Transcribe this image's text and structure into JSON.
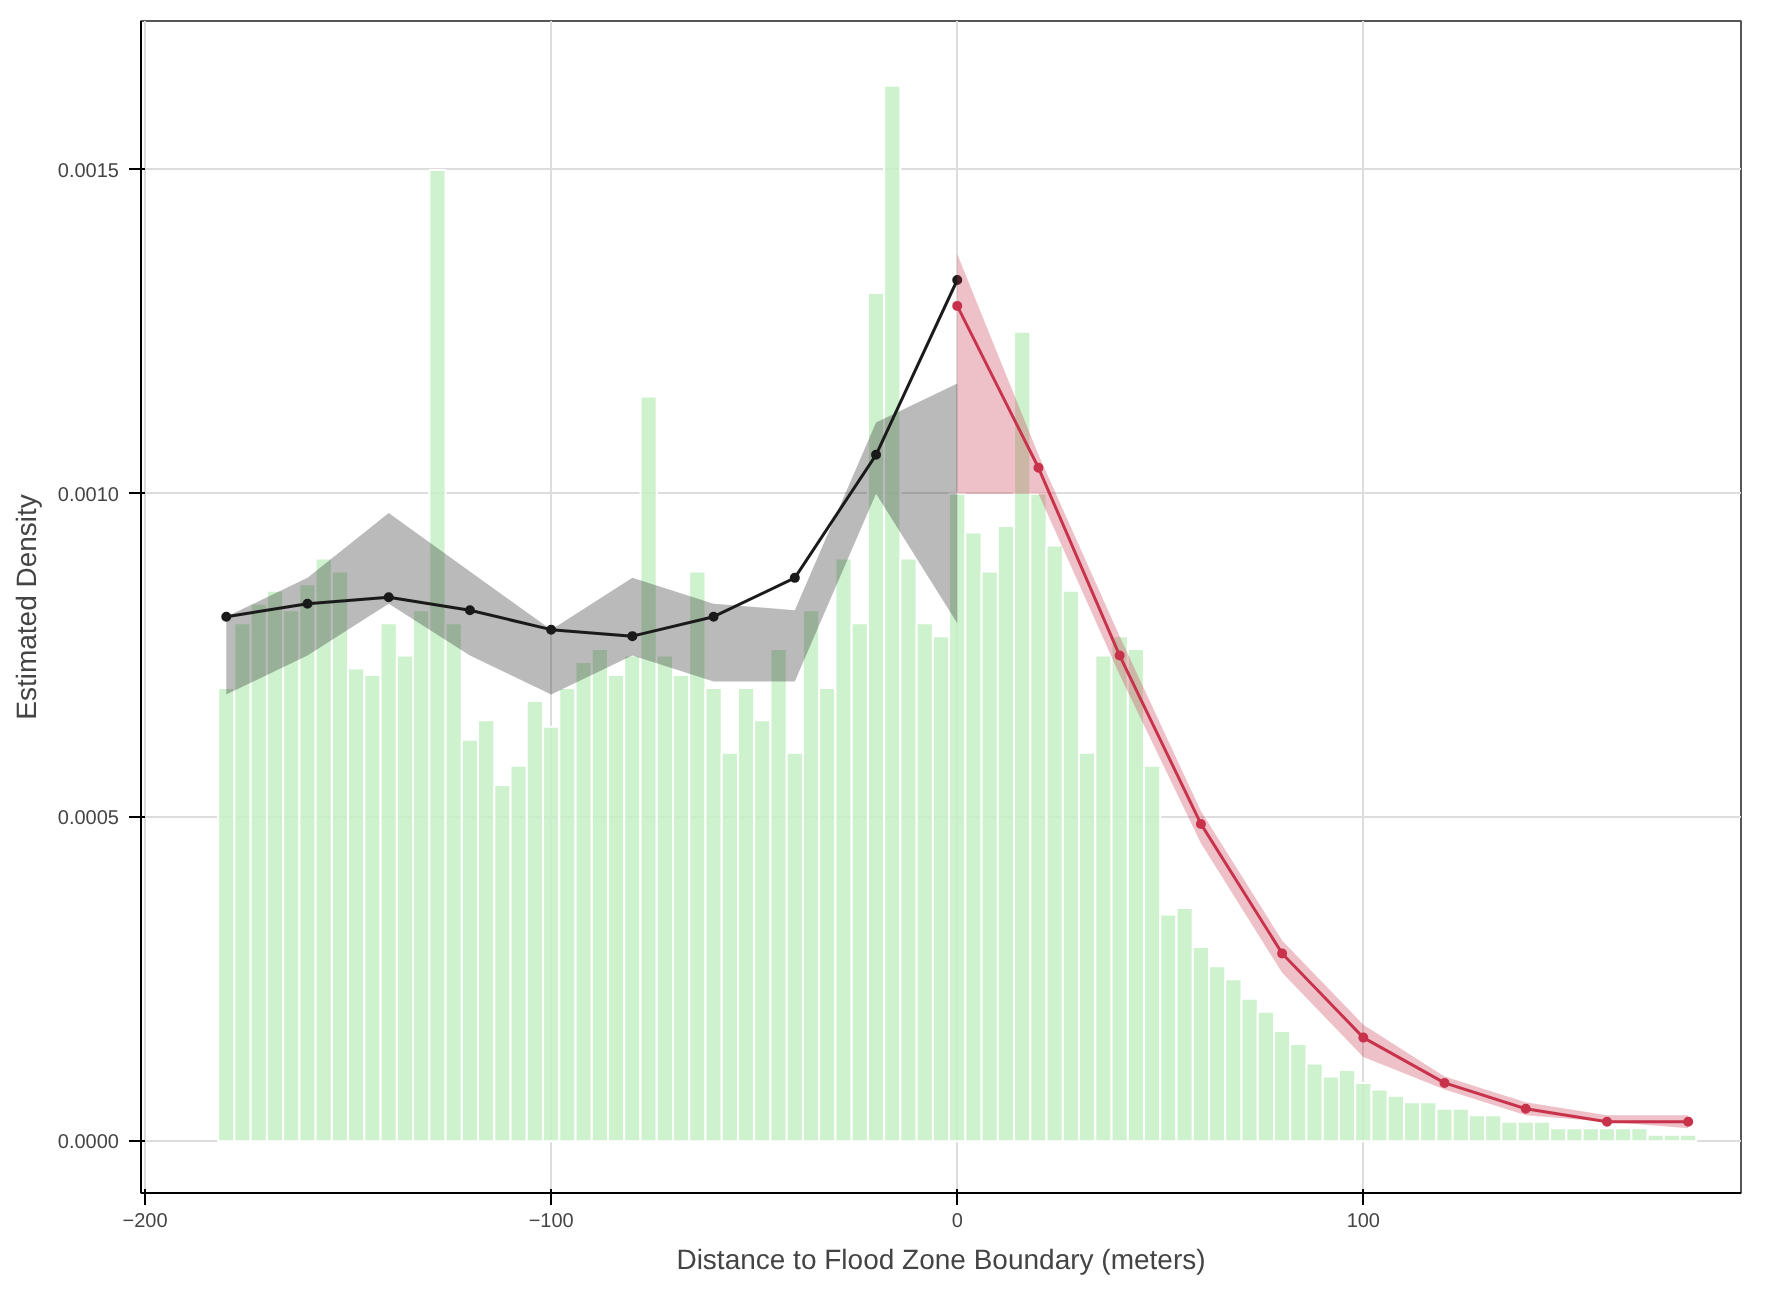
{
  "chart_data": {
    "type": "histogram",
    "xlabel": "Distance to Flood Zone Boundary (meters)",
    "ylabel": "Estimated Density",
    "bins": [
      -182,
      -178,
      -174,
      -170,
      -166,
      -162,
      -158,
      -154,
      -150,
      -146,
      -142,
      -138,
      -134,
      -130,
      -126,
      -122,
      -118,
      -114,
      -110,
      -106,
      -102,
      -98,
      -94,
      -90,
      -86,
      -82,
      -78,
      -74,
      -70,
      -66,
      -62,
      -58,
      -54,
      -50,
      -46,
      -42,
      -38,
      -34,
      -30,
      -26,
      -22,
      -18,
      -14,
      -10,
      -6,
      -2,
      2,
      6,
      10,
      14,
      18,
      22,
      26,
      30,
      34,
      38,
      42,
      46,
      50,
      54,
      58,
      62,
      66,
      70,
      74,
      78,
      82,
      86,
      90,
      94,
      98,
      102,
      106,
      110,
      114,
      118,
      122,
      126,
      130,
      134,
      138,
      142,
      146,
      150,
      154,
      158,
      162,
      166,
      170,
      174,
      178,
      182
    ],
    "values": [
      0.0007,
      0.0008,
      0.00083,
      0.00085,
      0.00082,
      0.00086,
      0.0009,
      0.00088,
      0.00073,
      0.00072,
      0.0008,
      0.00075,
      0.00082,
      0.0015,
      0.0008,
      0.00062,
      0.00065,
      0.00055,
      0.00058,
      0.00068,
      0.00064,
      0.0007,
      0.00074,
      0.00076,
      0.00072,
      0.00075,
      0.00115,
      0.00075,
      0.00072,
      0.00088,
      0.0007,
      0.0006,
      0.0007,
      0.00065,
      0.00076,
      0.0006,
      0.00082,
      0.0007,
      0.0009,
      0.0008,
      0.00131,
      0.00163,
      0.0009,
      0.0008,
      0.00078,
      0.001,
      0.00094,
      0.00088,
      0.00095,
      0.00125,
      0.001,
      0.00092,
      0.00085,
      0.0006,
      0.00075,
      0.00078,
      0.00076,
      0.00058,
      0.00035,
      0.00036,
      0.0003,
      0.00027,
      0.00025,
      0.00022,
      0.0002,
      0.00017,
      0.00015,
      0.00012,
      0.0001,
      0.00011,
      9e-05,
      8e-05,
      7e-05,
      6e-05,
      6e-05,
      5e-05,
      5e-05,
      4e-05,
      4e-05,
      3e-05,
      3e-05,
      3e-05,
      2e-05,
      2e-05,
      2e-05,
      2e-05,
      2e-05,
      2e-05,
      1e-05,
      1e-05,
      1e-05
    ],
    "color": "#c6efc6",
    "series": [
      {
        "type": "line",
        "color": "#1a1a1a",
        "x": [
          -180,
          -160,
          -140,
          -120,
          -100,
          -80,
          -60,
          -40,
          -20,
          0
        ],
        "values": [
          0.00081,
          0.00083,
          0.00084,
          0.00082,
          0.00079,
          0.00078,
          0.00081,
          0.00087,
          0.00106,
          0.00133
        ],
        "lower": [
          0.00069,
          0.00075,
          0.00083,
          0.00075,
          0.00069,
          0.00075,
          0.00071,
          0.00071,
          0.001,
          0.0008
        ],
        "upper": [
          0.00081,
          0.00087,
          0.00097,
          0.00088,
          0.00079,
          0.00087,
          0.00083,
          0.00082,
          0.00111,
          0.00117
        ]
      },
      {
        "type": "line",
        "color": "#c8324b",
        "x": [
          0,
          20,
          40,
          60,
          80,
          100,
          120,
          140,
          160,
          180
        ],
        "values": [
          0.00129,
          0.00104,
          0.00075,
          0.00049,
          0.00029,
          0.00016,
          9e-05,
          5e-05,
          3e-05,
          3e-05
        ],
        "lower": [
          0.001,
          0.001,
          0.00072,
          0.00046,
          0.00026,
          0.00013,
          8e-05,
          4e-05,
          3e-05,
          2e-05
        ],
        "upper": [
          0.00137,
          0.00106,
          0.00078,
          0.00051,
          0.00031,
          0.00018,
          0.0001,
          6e-05,
          4e-05,
          4e-05
        ]
      }
    ],
    "marker": "circle",
    "xlim": [
      -201,
      193
    ],
    "ylim": [
      -8e-05,
      0.00173
    ],
    "xticks": [
      -200,
      -100,
      0,
      100
    ],
    "yticks": [
      {
        "value": 0,
        "label": "0.0000"
      },
      {
        "value": 0.0005,
        "label": "0.0005"
      },
      {
        "value": 0.001,
        "label": "0.0010"
      },
      {
        "value": 0.0015,
        "label": "0.0015"
      }
    ],
    "grid": true
  }
}
